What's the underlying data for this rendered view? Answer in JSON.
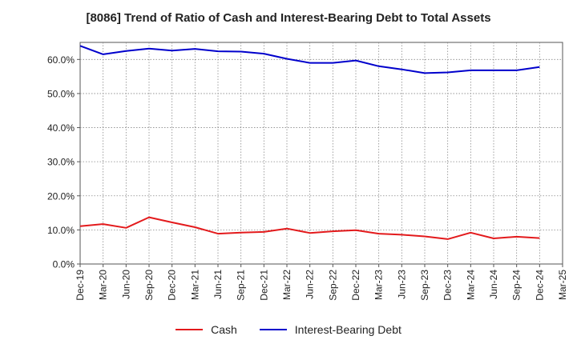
{
  "chart_data": {
    "type": "line",
    "title": "[8086]  Trend of Ratio of Cash and Interest-Bearing Debt to Total Assets",
    "xlabel": "",
    "ylabel": "",
    "x": [
      "Dec-19",
      "Mar-20",
      "Jun-20",
      "Sep-20",
      "Dec-20",
      "Mar-21",
      "Jun-21",
      "Sep-21",
      "Dec-21",
      "Mar-22",
      "Jun-22",
      "Sep-22",
      "Dec-22",
      "Mar-23",
      "Jun-23",
      "Sep-23",
      "Dec-23",
      "Mar-24",
      "Jun-24",
      "Sep-24",
      "Dec-24",
      "Mar-25"
    ],
    "ylim": [
      0,
      65
    ],
    "yticks": [
      0,
      10,
      20,
      30,
      40,
      50,
      60
    ],
    "ytick_labels": [
      "0.0%",
      "10.0%",
      "20.0%",
      "30.0%",
      "40.0%",
      "50.0%",
      "60.0%"
    ],
    "grid": true,
    "legend_position": "bottom",
    "series": [
      {
        "name": "Cash",
        "color": "#e31a1c",
        "values": [
          11.1,
          11.7,
          10.6,
          13.7,
          12.2,
          10.8,
          8.9,
          9.2,
          9.4,
          10.4,
          9.1,
          9.6,
          9.9,
          8.9,
          8.6,
          8.1,
          7.3,
          9.2,
          7.5,
          8.0,
          7.6,
          null
        ]
      },
      {
        "name": "Interest-Bearing Debt",
        "color": "#0000cc",
        "values": [
          64.0,
          61.5,
          62.5,
          63.2,
          62.6,
          63.1,
          62.4,
          62.3,
          61.7,
          60.2,
          59.0,
          59.0,
          59.7,
          58.0,
          57.1,
          56.0,
          56.2,
          56.8,
          56.8,
          56.8,
          57.8,
          null
        ]
      }
    ]
  }
}
